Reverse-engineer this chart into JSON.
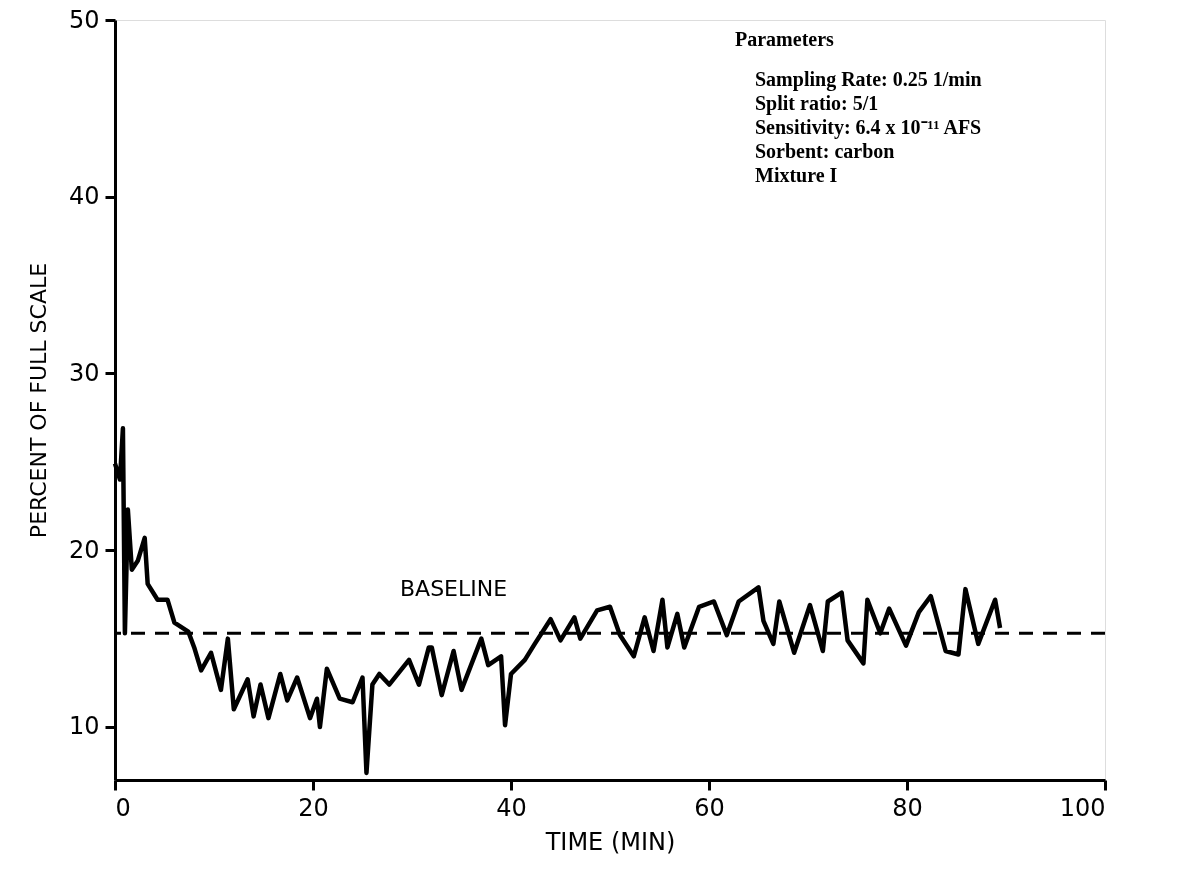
{
  "chart_data": {
    "type": "line",
    "xlabel": "TIME (MIN)",
    "ylabel": "PERCENT OF FULL SCALE",
    "x": [
      0,
      0.5,
      0.8,
      1,
      1.3,
      1.7,
      2.3,
      3.0,
      3.3,
      4.3,
      5.3,
      6,
      7.4,
      8,
      8.7,
      9.7,
      10.7,
      11.4,
      12,
      13.4,
      14,
      14.7,
      15.5,
      16.7,
      17.4,
      18.4,
      19.7,
      20.4,
      20.7,
      21.4,
      22.7,
      24,
      25,
      25.4,
      26,
      26.7,
      27.7,
      29.7,
      30.7,
      31.7,
      32.0,
      33,
      34.2,
      35,
      37,
      37.7,
      39,
      39.4,
      40,
      41.4,
      42.4,
      44,
      45,
      46.4,
      47,
      48.7,
      50,
      51,
      52.4,
      53.5,
      54.4,
      55.3,
      55.8,
      56.8,
      57.5,
      59,
      60.5,
      61.8,
      63,
      65,
      65.5,
      66.5,
      67.1,
      68.6,
      70.2,
      71.5,
      72,
      73.4,
      74,
      75.6,
      76,
      77.3,
      78.2,
      79.9,
      81.2,
      82.4,
      83.9,
      85.2,
      85.9,
      87.2,
      88.9,
      89.4
    ],
    "series": [
      {
        "color": "#000000",
        "values": [
          24.9,
          24.0,
          26.9,
          15.3,
          22.3,
          18.9,
          19.4,
          20.7,
          18.1,
          17.2,
          17.2,
          15.9,
          15.4,
          14.5,
          13.2,
          14.2,
          12.1,
          15.0,
          11.0,
          12.7,
          10.6,
          12.4,
          10.5,
          13.0,
          11.5,
          12.8,
          10.5,
          11.6,
          10.0,
          13.3,
          11.6,
          11.4,
          12.8,
          7.4,
          12.4,
          13.0,
          12.4,
          13.8,
          12.4,
          14.5,
          14.5,
          11.8,
          14.3,
          12.1,
          15.0,
          13.5,
          14.0,
          10.1,
          13.0,
          13.8,
          14.7,
          16.1,
          14.9,
          16.2,
          15.0,
          16.6,
          16.8,
          15.2,
          14.0,
          16.2,
          14.3,
          17.2,
          14.5,
          16.4,
          14.5,
          16.8,
          17.1,
          15.2,
          17.1,
          17.9,
          16.0,
          14.7,
          17.1,
          14.2,
          16.9,
          14.3,
          17.1,
          17.6,
          14.9,
          13.6,
          17.2,
          15.3,
          16.7,
          14.6,
          16.5,
          17.4,
          14.3,
          14.1,
          17.8,
          14.7,
          17.2,
          15.6
        ]
      }
    ],
    "xlim": [
      0,
      100
    ],
    "ylim": [
      7,
      50
    ],
    "xticks": [
      0,
      20,
      40,
      60,
      80,
      100
    ],
    "yticks": [
      10,
      20,
      30,
      40,
      50
    ],
    "ref_lines": [
      {
        "axis": "y",
        "value": 15.3,
        "label": "BASELINE",
        "color": "#000000",
        "line_style": "dashed"
      }
    ],
    "annotations": [
      "Parameters",
      "Sampling Rate:  0.25 1/min",
      "Split ratio:  5/1",
      "Sensitivity:  6.4 x 10⁻¹¹ AFS",
      "Sorbent:  carbon",
      "Mixture I"
    ],
    "grid": false
  }
}
